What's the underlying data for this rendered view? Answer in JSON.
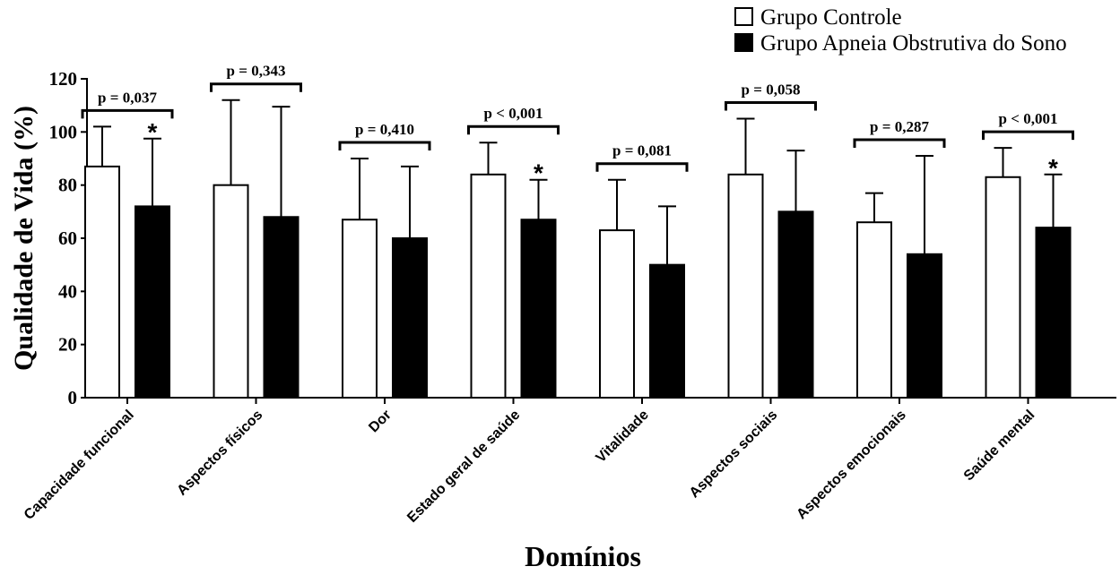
{
  "chart_data": {
    "type": "bar",
    "xlabel": "Domínios",
    "ylabel": "Qualidade de Vida (%)",
    "ylim": [
      0,
      120
    ],
    "yticks": [
      0,
      20,
      40,
      60,
      80,
      100,
      120
    ],
    "grid": false,
    "legend_position": "top-right",
    "categories": [
      "Capacidade funcional",
      "Aspectos físicos",
      "Dor",
      "Estado geral de saúde",
      "Vitalidade",
      "Aspectos sociais",
      "Aspectos emocionais",
      "Saúde mental"
    ],
    "series": [
      {
        "name": "Grupo Controle",
        "color": "#ffffff",
        "values": [
          87,
          80,
          67,
          84,
          63,
          84,
          66,
          83
        ],
        "error": [
          15,
          32,
          23,
          12,
          19,
          21,
          11,
          11
        ]
      },
      {
        "name": "Grupo Apneia Obstrutiva do Sono",
        "color": "#000000",
        "values": [
          72,
          68,
          60,
          67,
          50,
          70,
          54,
          64
        ],
        "error": [
          25.5,
          41.5,
          27,
          15,
          22,
          23,
          37,
          20
        ]
      }
    ],
    "p_values": [
      "p = 0,037",
      "p = 0,343",
      "p = 0,410",
      "p < 0,001",
      "p = 0,081",
      "p = 0,058",
      "p = 0,287",
      "p < 0,001"
    ],
    "significance_marks": [
      "*",
      "",
      "",
      "*",
      "",
      "",
      "",
      "*"
    ]
  }
}
